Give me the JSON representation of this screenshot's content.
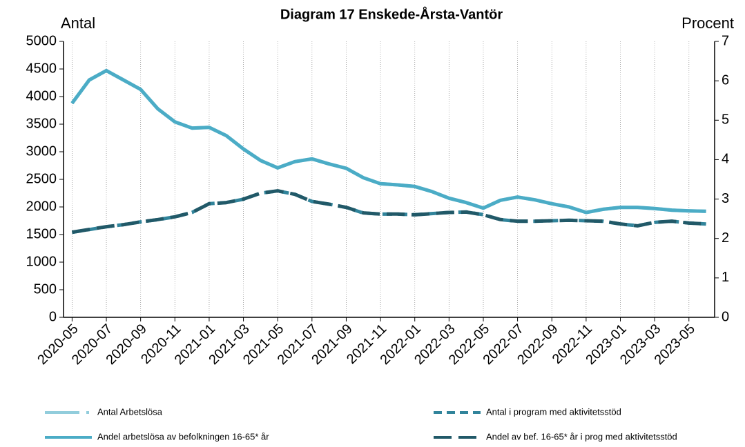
{
  "chart_data": {
    "type": "line",
    "title": "Diagram 17 Enskede-Årsta-Vantör",
    "y_label": "Antal",
    "y2_label": "Procent",
    "categories": [
      "2020-05",
      null,
      "2020-07",
      null,
      "2020-09",
      null,
      "2020-11",
      null,
      "2021-01",
      null,
      "2021-03",
      null,
      "2021-05",
      null,
      "2021-07",
      null,
      "2021-09",
      null,
      "2021-11",
      null,
      "2022-01",
      null,
      "2022-03",
      null,
      "2022-05",
      null,
      "2022-07",
      null,
      "2022-09",
      null,
      "2022-11",
      null,
      "2023-01",
      null,
      "2023-03",
      null,
      "2023-05",
      null
    ],
    "series": [
      {
        "name": "Antal Arbetslösa",
        "color": "#92cddc",
        "dash": false,
        "axis": "y",
        "values": [
          3880,
          4300,
          4470,
          4300,
          4130,
          3780,
          3540,
          3430,
          3440,
          3290,
          3050,
          2840,
          2710,
          2820,
          2870,
          2780,
          2700,
          2530,
          2420,
          2400,
          2370,
          2280,
          2160,
          2080,
          1980,
          2120,
          2180,
          2130,
          2060,
          2000,
          1900,
          1960,
          1990,
          1990,
          1970,
          1940,
          1930,
          1920
        ]
      },
      {
        "name": "Antal i program med aktivitetsstöd",
        "color": "#31849b",
        "dash": true,
        "axis": "y",
        "values": [
          1540,
          1590,
          1640,
          1680,
          1730,
          1770,
          1820,
          1900,
          2060,
          2080,
          2140,
          2250,
          2290,
          2230,
          2100,
          2050,
          1990,
          1890,
          1870,
          1870,
          1860,
          1880,
          1900,
          1910,
          1860,
          1770,
          1740,
          1740,
          1750,
          1760,
          1750,
          1740,
          1690,
          1660,
          1720,
          1740,
          1710,
          1690
        ]
      },
      {
        "name": "Andel arbetslösa av befolkningen 16-65* år",
        "color": "#4bacc6",
        "dash": false,
        "axis": "y2",
        "values": [
          5.43,
          6.02,
          6.26,
          6.02,
          5.78,
          5.29,
          4.96,
          4.8,
          4.82,
          4.61,
          4.27,
          3.98,
          3.79,
          3.95,
          4.02,
          3.89,
          3.78,
          3.54,
          3.39,
          3.36,
          3.32,
          3.19,
          3.02,
          2.91,
          2.77,
          2.97,
          3.05,
          2.98,
          2.88,
          2.8,
          2.66,
          2.74,
          2.79,
          2.79,
          2.76,
          2.72,
          2.7,
          2.69
        ]
      },
      {
        "name": "Andel av bef. 16-65* år i prog med aktivitetsstöd",
        "color": "#215968",
        "dash": true,
        "axis": "y2",
        "values": [
          2.16,
          2.23,
          2.3,
          2.35,
          2.42,
          2.48,
          2.55,
          2.66,
          2.88,
          2.91,
          3.0,
          3.15,
          3.21,
          3.12,
          2.94,
          2.87,
          2.79,
          2.65,
          2.62,
          2.62,
          2.6,
          2.63,
          2.66,
          2.67,
          2.6,
          2.48,
          2.44,
          2.44,
          2.45,
          2.46,
          2.45,
          2.44,
          2.37,
          2.32,
          2.41,
          2.44,
          2.39,
          2.37
        ]
      }
    ],
    "ylim": [
      0,
      5000
    ],
    "yticks": [
      0,
      500,
      1000,
      1500,
      2000,
      2500,
      3000,
      3500,
      4000,
      4500,
      5000
    ],
    "y2lim": [
      0,
      7
    ],
    "y2ticks": [
      0,
      1,
      2,
      3,
      4,
      5,
      6,
      7
    ],
    "grid": true
  }
}
